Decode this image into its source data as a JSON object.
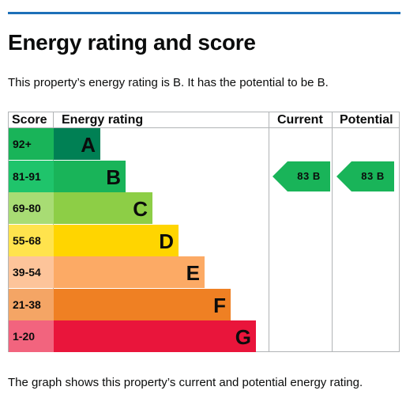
{
  "heading": "Energy rating and score",
  "summary": "This property’s energy rating is B. It has the potential to be B.",
  "footer": "The graph shows this property’s current and potential energy rating.",
  "table": {
    "headers": {
      "score": "Score",
      "rating": "Energy rating",
      "current": "Current",
      "potential": "Potential"
    }
  },
  "bands": [
    {
      "range": "92+",
      "letter": "A",
      "color": "#008054",
      "score_color": "#19b459"
    },
    {
      "range": "81-91",
      "letter": "B",
      "color": "#19b459",
      "score_color": "#1fc46b"
    },
    {
      "range": "69-80",
      "letter": "C",
      "color": "#8dce46",
      "score_color": "#a8dc74"
    },
    {
      "range": "55-68",
      "letter": "D",
      "color": "#ffd500",
      "score_color": "#ffe34d"
    },
    {
      "range": "39-54",
      "letter": "E",
      "color": "#fcaa65",
      "score_color": "#fdc49a"
    },
    {
      "range": "21-38",
      "letter": "F",
      "color": "#ef8023",
      "score_color": "#f4a565"
    },
    {
      "range": "1-20",
      "letter": "G",
      "color": "#e9153b",
      "score_color": "#f2647e"
    }
  ],
  "current": {
    "score": "83",
    "band": "B",
    "label": "83 B",
    "color": "#19b459"
  },
  "potential": {
    "score": "83",
    "band": "B",
    "label": "83 B",
    "color": "#19b459"
  }
}
